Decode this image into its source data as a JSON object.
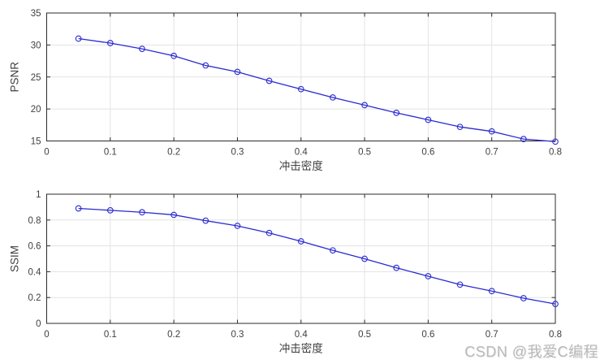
{
  "figure": {
    "background": "#ffffff"
  },
  "watermark": {
    "text": "CSDN @我爱C编程",
    "color": "#b9b9b9"
  },
  "style": {
    "axis_color": "#2b2b2b",
    "grid_color": "#e3e3e3",
    "tick_label_color": "#3f3f3f",
    "label_color": "#3f3f3f"
  },
  "chart_data": [
    {
      "type": "line",
      "title": "",
      "xlabel": "冲击密度",
      "ylabel": "PSNR",
      "x": [
        0.05,
        0.1,
        0.15,
        0.2,
        0.25,
        0.3,
        0.35,
        0.4,
        0.45,
        0.5,
        0.55,
        0.6,
        0.65,
        0.7,
        0.75,
        0.8
      ],
      "series": [
        {
          "name": "PSNR",
          "values": [
            31.0,
            30.3,
            29.4,
            28.3,
            26.8,
            25.8,
            24.4,
            23.1,
            21.8,
            20.6,
            19.4,
            18.3,
            17.2,
            16.5,
            15.3,
            14.9
          ],
          "color": "#2a2ad2",
          "marker": "circle"
        }
      ],
      "xlim": [
        0,
        0.8
      ],
      "ylim": [
        15,
        35
      ],
      "xticks": [
        0,
        0.1,
        0.2,
        0.3,
        0.4,
        0.5,
        0.6,
        0.7,
        0.8
      ],
      "yticks": [
        15,
        20,
        25,
        30,
        35
      ],
      "grid": true,
      "legend": null
    },
    {
      "type": "line",
      "title": "",
      "xlabel": "冲击密度",
      "ylabel": "SSIM",
      "x": [
        0.05,
        0.1,
        0.15,
        0.2,
        0.25,
        0.3,
        0.35,
        0.4,
        0.45,
        0.5,
        0.55,
        0.6,
        0.65,
        0.7,
        0.75,
        0.8
      ],
      "series": [
        {
          "name": "SSIM",
          "values": [
            0.89,
            0.875,
            0.86,
            0.84,
            0.795,
            0.755,
            0.7,
            0.635,
            0.565,
            0.5,
            0.43,
            0.365,
            0.3,
            0.25,
            0.195,
            0.15
          ],
          "color": "#2a2ad2",
          "marker": "circle"
        }
      ],
      "xlim": [
        0,
        0.8
      ],
      "ylim": [
        0,
        1
      ],
      "xticks": [
        0,
        0.1,
        0.2,
        0.3,
        0.4,
        0.5,
        0.6,
        0.7,
        0.8
      ],
      "yticks": [
        0,
        0.2,
        0.4,
        0.6,
        0.8,
        1
      ],
      "grid": true,
      "legend": null
    }
  ]
}
